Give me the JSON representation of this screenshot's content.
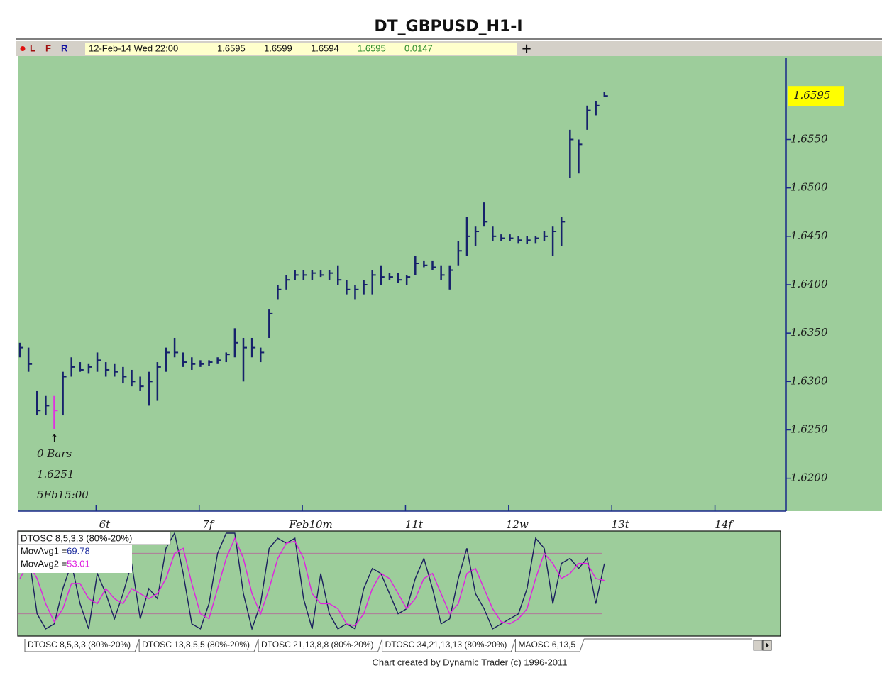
{
  "chart_data": {
    "type": "ohlc",
    "title": "DT_GBPUSD_H1-I",
    "toolbar": {
      "letters": [
        "L",
        "F",
        "R"
      ],
      "datetime": "12-Feb-14 Wed 22:00",
      "open": 1.6595,
      "high": 1.6599,
      "low": 1.6594,
      "close": 1.6595,
      "change": 0.0147
    },
    "high": [
      1.634,
      1.6335,
      1.629,
      1.6285,
      1.6285,
      1.631,
      1.6325,
      1.632,
      1.6318,
      1.633,
      1.632,
      1.6318,
      1.6315,
      1.6312,
      1.6305,
      1.631,
      1.632,
      1.6335,
      1.6345,
      1.633,
      1.6325,
      1.6322,
      1.6322,
      1.6325,
      1.633,
      1.6355,
      1.6345,
      1.6345,
      1.6335,
      1.6375,
      1.64,
      1.641,
      1.6415,
      1.6415,
      1.6415,
      1.6415,
      1.6415,
      1.642,
      1.6405,
      1.64,
      1.6405,
      1.6415,
      1.642,
      1.6412,
      1.6412,
      1.641,
      1.643,
      1.6425,
      1.6425,
      1.642,
      1.642,
      1.6445,
      1.647,
      1.646,
      1.6485,
      1.646,
      1.6452,
      1.6452,
      1.645,
      1.645,
      1.645,
      1.6455,
      1.646,
      1.647,
      1.656,
      1.655,
      1.6585,
      1.659,
      1.6599
    ],
    "low": [
      1.6325,
      1.631,
      1.6265,
      1.6265,
      1.6251,
      1.6265,
      1.6305,
      1.631,
      1.6308,
      1.631,
      1.6305,
      1.6305,
      1.6298,
      1.6295,
      1.629,
      1.6275,
      1.628,
      1.631,
      1.6325,
      1.6315,
      1.6312,
      1.6315,
      1.6316,
      1.6318,
      1.632,
      1.6325,
      1.63,
      1.6325,
      1.632,
      1.6345,
      1.6385,
      1.6395,
      1.6405,
      1.6405,
      1.6405,
      1.6408,
      1.6405,
      1.64,
      1.639,
      1.6385,
      1.639,
      1.639,
      1.64,
      1.6405,
      1.6402,
      1.64,
      1.641,
      1.6418,
      1.6415,
      1.6405,
      1.6395,
      1.642,
      1.643,
      1.644,
      1.646,
      1.6445,
      1.6445,
      1.6445,
      1.6443,
      1.6442,
      1.6443,
      1.6445,
      1.643,
      1.644,
      1.651,
      1.6515,
      1.656,
      1.6575,
      1.6594
    ],
    "close": [
      1.6335,
      1.6318,
      1.627,
      1.6275,
      1.627,
      1.6305,
      1.6315,
      1.6312,
      1.6315,
      1.6322,
      1.6312,
      1.631,
      1.6305,
      1.63,
      1.6295,
      1.63,
      1.6315,
      1.633,
      1.633,
      1.632,
      1.6318,
      1.6318,
      1.632,
      1.6322,
      1.6328,
      1.634,
      1.6335,
      1.6335,
      1.633,
      1.637,
      1.6395,
      1.6405,
      1.641,
      1.641,
      1.6412,
      1.641,
      1.6412,
      1.6405,
      1.6395,
      1.6395,
      1.64,
      1.641,
      1.6408,
      1.6408,
      1.6405,
      1.6408,
      1.6422,
      1.642,
      1.6418,
      1.641,
      1.6415,
      1.6435,
      1.645,
      1.6455,
      1.6465,
      1.645,
      1.6448,
      1.6448,
      1.6446,
      1.6446,
      1.6448,
      1.645,
      1.6455,
      1.6465,
      1.655,
      1.6545,
      1.658,
      1.6585,
      1.6595
    ],
    "color": "#16216b",
    "marked_bar": 4,
    "marked_color": "#e030e0",
    "background": "#9dcd9b",
    "ylim": [
      1.6166,
      1.6634
    ],
    "yticks": [
      {
        "value": 1.62,
        "label": "1.6200"
      },
      {
        "value": 1.625,
        "label": "1.6250"
      },
      {
        "value": 1.63,
        "label": "1.6300"
      },
      {
        "value": 1.635,
        "label": "1.6350"
      },
      {
        "value": 1.64,
        "label": "1.6400"
      },
      {
        "value": 1.645,
        "label": "1.6450"
      },
      {
        "value": 1.65,
        "label": "1.6500"
      },
      {
        "value": 1.655,
        "label": "1.6550"
      }
    ],
    "last_price": {
      "value": 1.6595,
      "label": "1.6595"
    },
    "last_price_color": "#ffff00",
    "xlim": [
      -0.25,
      89.15
    ],
    "xticks": [
      {
        "value": 8.86,
        "label": "6t"
      },
      {
        "value": 20.86,
        "label": "7f"
      },
      {
        "value": 32.86,
        "label": "Feb10m"
      },
      {
        "value": 44.86,
        "label": "11t"
      },
      {
        "value": 56.86,
        "label": "12w"
      },
      {
        "value": 68.86,
        "label": "13t"
      },
      {
        "value": 80.86,
        "label": "14f"
      }
    ],
    "annotation": {
      "arrow": "↑",
      "lines": [
        "0 Bars",
        "1.6251",
        "5Fb15:00"
      ]
    },
    "oscillator": {
      "type": "line",
      "title": "DTOSC 8,5,3,3 (80%-20%)",
      "ylim": [
        0,
        100
      ],
      "levels": [
        80,
        20
      ],
      "series": [
        {
          "name": "MovAvg1 =",
          "color": "#1a1f5e",
          "label_color": "#2030a0",
          "values": [
            65,
            80,
            20,
            5,
            10,
            45,
            70,
            30,
            5,
            60,
            40,
            15,
            40,
            70,
            15,
            45,
            35,
            85,
            100,
            60,
            10,
            5,
            30,
            80,
            100,
            100,
            40,
            5,
            30,
            85,
            95,
            90,
            95,
            35,
            5,
            60,
            20,
            5,
            10,
            5,
            45,
            65,
            60,
            40,
            20,
            25,
            55,
            75,
            45,
            10,
            15,
            55,
            85,
            40,
            25,
            5,
            10,
            15,
            20,
            45,
            95,
            85,
            30,
            70,
            75,
            65,
            75,
            30,
            69.78
          ]
        },
        {
          "name": "MovAvg2 =",
          "color": "#e020e0",
          "label_color": "#e020e0",
          "values": [
            55,
            70,
            55,
            30,
            12,
            25,
            50,
            50,
            35,
            30,
            45,
            35,
            30,
            45,
            40,
            35,
            40,
            55,
            80,
            85,
            50,
            20,
            15,
            45,
            75,
            95,
            75,
            40,
            20,
            45,
            75,
            90,
            92,
            75,
            40,
            30,
            30,
            25,
            10,
            8,
            20,
            45,
            60,
            55,
            40,
            25,
            35,
            55,
            60,
            40,
            20,
            30,
            60,
            65,
            45,
            25,
            12,
            10,
            15,
            25,
            55,
            80,
            70,
            55,
            60,
            70,
            70,
            55,
            53.01
          ]
        }
      ]
    },
    "tabs": [
      "DTOSC 8,5,3,3 (80%-20%)",
      "DTOSC 13,8,5,5 (80%-20%)",
      "DTOSC 21,13,8,8 (80%-20%)",
      "DTOSC 34,21,13,13 (80%-20%)",
      "MAOSC 6,13,5"
    ],
    "footer": "Chart created by Dynamic Trader  (c) 1996-2011"
  }
}
